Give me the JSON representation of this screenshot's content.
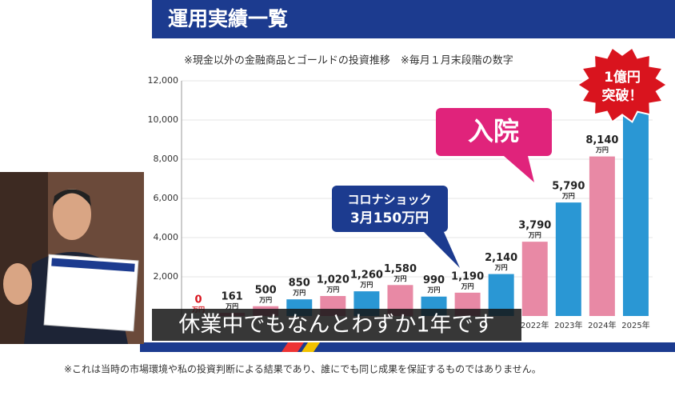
{
  "chart_data": {
    "type": "bar",
    "title": "運用実績一覧",
    "subtitle": "※現金以外の金融商品とゴールドの投資推移　※毎月１月末段階の数字",
    "categories": [
      null,
      null,
      null,
      null,
      null,
      null,
      null,
      null,
      null,
      null,
      "2022年",
      "2023年",
      "2024年",
      "2025年"
    ],
    "values": [
      0,
      161,
      500,
      850,
      1020,
      1260,
      1580,
      990,
      1190,
      2140,
      3790,
      5790,
      8140,
      11000
    ],
    "value_labels": [
      "0",
      "161",
      "500",
      "850",
      "1,020",
      "1,260",
      "1,580",
      "990",
      "1,190",
      "2,140",
      "3,790",
      "5,790",
      "8,140",
      null
    ],
    "value_unit": "万円",
    "colors": [
      "#e889a5",
      "#e889a5",
      "#e889a5",
      "#2a97d4",
      "#e889a5",
      "#2a97d4",
      "#e889a5",
      "#2a97d4",
      "#e889a5",
      "#2a97d4",
      "#e889a5",
      "#2a97d4",
      "#e889a5",
      "#2a97d4"
    ],
    "ylim": [
      0,
      12000
    ],
    "yticks": [
      {
        "value": 2000,
        "label": "2,000"
      },
      {
        "value": 4000,
        "label": "4,000"
      },
      {
        "value": 6000,
        "label": "6,000"
      },
      {
        "value": 8000,
        "label": "8,000"
      },
      {
        "value": 10000,
        "label": "10,000"
      },
      {
        "value": 12000,
        "label": "12,000"
      }
    ],
    "grid": true,
    "callouts": [
      "入院",
      "コロナショック",
      "3月150万円"
    ],
    "badge": [
      "1億円",
      "突破！"
    ]
  },
  "caption": "休業中でもなんとわずか1年です",
  "footnote": "※これは当時の市場環境や私の投資判断による結果であり、誰にでも同じ成果を保証するものではありません。"
}
